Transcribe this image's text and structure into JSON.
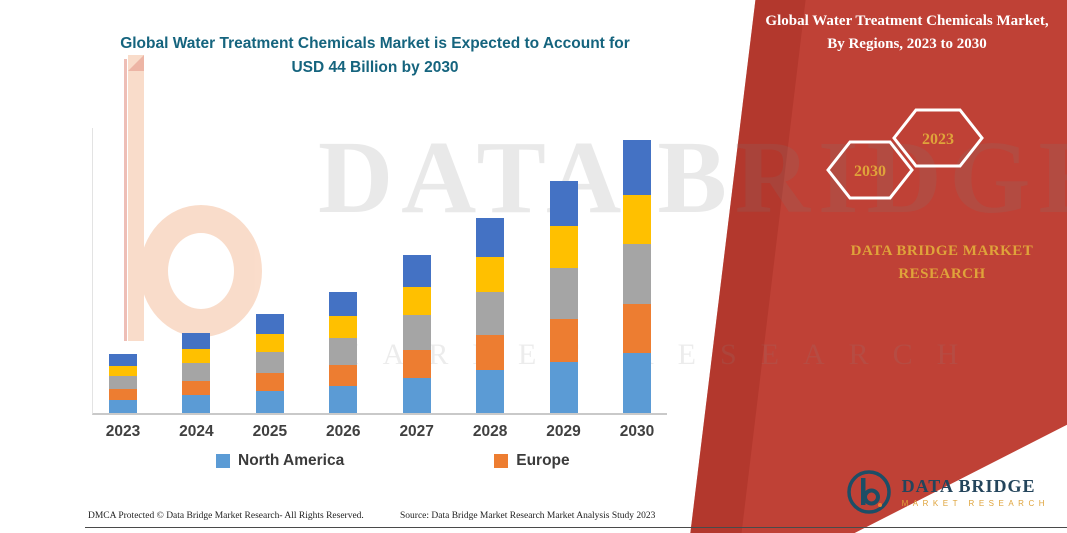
{
  "header": {
    "left_title": "Global Water Treatment Chemicals Market is Expected to Account for USD 44 Billion by 2030",
    "right_title": "Global Water Treatment Chemicals Market, By Regions, 2023 to 2030"
  },
  "badges": {
    "hex_left": "2030",
    "hex_right": "2023"
  },
  "brand": {
    "panel_text": "DATA BRIDGE MARKET RESEARCH",
    "logo_title": "DATA BRIDGE",
    "logo_subtitle": "MARKET RESEARCH"
  },
  "watermark": {
    "line1": "DATA BRIDGE",
    "line2": "MARKET RESEARCH"
  },
  "footer": {
    "left": "DMCA Protected © Data Bridge Market Research-  All Rights Reserved.",
    "source": "Source: Data Bridge Market Research  Market Analysis Study 2023"
  },
  "colors": {
    "panel_red": "#bf4136",
    "panel_red_dark": "#a93226",
    "title_teal": "#15647e",
    "gold": "#dfa33a",
    "axis_gray": "#c9c9c9",
    "label_dark": "#404040",
    "logo_navy": "#1d4e66"
  },
  "chart_data": {
    "type": "bar",
    "stacked": true,
    "title": "Global Water Treatment Chemicals Market is Expected to Account for USD 44 Billion by 2030",
    "unit": "USD Billion",
    "categories": [
      "2023",
      "2024",
      "2025",
      "2026",
      "2027",
      "2028",
      "2029",
      "2030"
    ],
    "series": [
      {
        "name": "North America",
        "color": "#5b9bd5",
        "values": [
          2.1,
          2.9,
          3.5,
          4.3,
          5.6,
          6.9,
          8.3,
          9.7
        ]
      },
      {
        "name": "Europe",
        "color": "#ed7d31",
        "values": [
          1.7,
          2.3,
          2.9,
          3.5,
          4.6,
          5.7,
          6.8,
          7.9
        ]
      },
      {
        "name": "series-gray (unlabeled)",
        "color": "#a5a5a5",
        "values": [
          2.1,
          2.9,
          3.5,
          4.3,
          5.6,
          6.9,
          8.3,
          9.7
        ]
      },
      {
        "name": "series-yellow (unlabeled)",
        "color": "#ffc000",
        "values": [
          1.7,
          2.3,
          2.9,
          3.5,
          4.6,
          5.7,
          6.8,
          7.9
        ]
      },
      {
        "name": "series-darkblue (unlabeled)",
        "color": "#4472c4",
        "values": [
          1.9,
          2.6,
          3.2,
          3.9,
          5.1,
          6.3,
          7.3,
          8.8
        ]
      }
    ],
    "totals": [
      9.5,
      13.0,
      16.0,
      19.5,
      25.5,
      31.5,
      37.5,
      44.0
    ],
    "legend_items": [
      {
        "label": "North America",
        "color": "#5b9bd5"
      },
      {
        "label": "Europe",
        "color": "#ed7d31"
      }
    ],
    "ylim": [
      0,
      46
    ],
    "grid": false,
    "legend_position": "bottom"
  }
}
